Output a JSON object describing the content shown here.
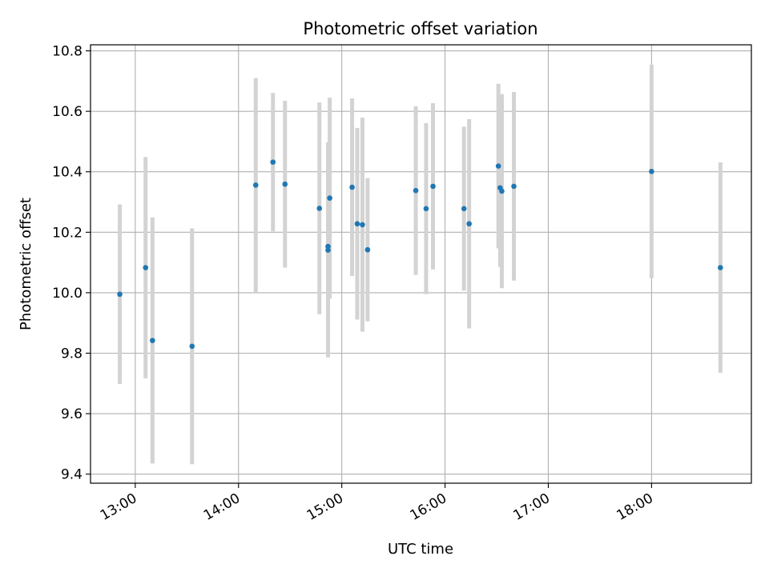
{
  "chart_data": {
    "type": "scatter",
    "title": "Photometric offset variation",
    "xlabel": "UTC time",
    "ylabel": "Photometric offset",
    "x_tick_labels": [
      "13:00",
      "14:00",
      "15:00",
      "16:00",
      "17:00",
      "18:00"
    ],
    "y_tick_labels": [
      "9.4",
      "9.6",
      "9.8",
      "10.0",
      "10.2",
      "10.4",
      "10.6",
      "10.8"
    ],
    "xlim": [
      "12:34",
      "18:58"
    ],
    "ylim": [
      9.37,
      10.82
    ],
    "grid": true,
    "error_bars": true,
    "colors": {
      "points": "#1f77b4",
      "error_bars": "#d3d3d3",
      "grid": "#b0b0b0"
    },
    "points": [
      {
        "x": "12:51",
        "y": 9.995,
        "yerr": 0.297
      },
      {
        "x": "13:06",
        "y": 10.083,
        "yerr": 0.366
      },
      {
        "x": "13:10",
        "y": 9.842,
        "yerr": 0.407
      },
      {
        "x": "13:33",
        "y": 9.823,
        "yerr": 0.39
      },
      {
        "x": "14:10",
        "y": 10.356,
        "yerr": 0.354
      },
      {
        "x": "14:20",
        "y": 10.432,
        "yerr": 0.229
      },
      {
        "x": "14:27",
        "y": 10.359,
        "yerr": 0.276
      },
      {
        "x": "14:47",
        "y": 10.279,
        "yerr": 0.35
      },
      {
        "x": "14:52",
        "y": 10.141,
        "yerr": 0.355
      },
      {
        "x": "14:52",
        "y": 10.153,
        "yerr": 0.345
      },
      {
        "x": "14:53",
        "y": 10.313,
        "yerr": 0.332
      },
      {
        "x": "15:06",
        "y": 10.349,
        "yerr": 0.294
      },
      {
        "x": "15:09",
        "y": 10.228,
        "yerr": 0.317
      },
      {
        "x": "15:12",
        "y": 10.225,
        "yerr": 0.354
      },
      {
        "x": "15:15",
        "y": 10.142,
        "yerr": 0.237
      },
      {
        "x": "15:43",
        "y": 10.338,
        "yerr": 0.279
      },
      {
        "x": "15:49",
        "y": 10.278,
        "yerr": 0.283
      },
      {
        "x": "15:53",
        "y": 10.352,
        "yerr": 0.275
      },
      {
        "x": "16:11",
        "y": 10.278,
        "yerr": 0.271
      },
      {
        "x": "16:14",
        "y": 10.228,
        "yerr": 0.346
      },
      {
        "x": "16:31",
        "y": 10.419,
        "yerr": 0.272
      },
      {
        "x": "16:32",
        "y": 10.347,
        "yerr": 0.262
      },
      {
        "x": "16:33",
        "y": 10.336,
        "yerr": 0.321
      },
      {
        "x": "16:40",
        "y": 10.352,
        "yerr": 0.312
      },
      {
        "x": "18:00",
        "y": 10.401,
        "yerr": 0.353
      },
      {
        "x": "18:40",
        "y": 10.083,
        "yerr": 0.348
      }
    ]
  }
}
